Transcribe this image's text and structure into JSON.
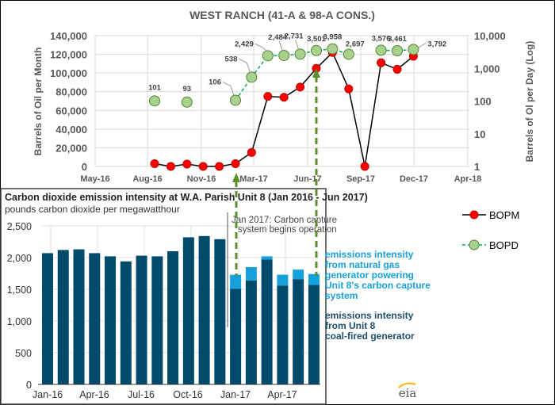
{
  "chart_data": [
    {
      "type": "line",
      "title": "WEST RANCH (41-A & 98-A CONS.)",
      "ylabel": "Barrels of Oil per Month",
      "y2label": "Barrels of Ol per Day (Log)",
      "x_ticks": [
        "May-16",
        "Aug-16",
        "Nov-16",
        "Mar-17",
        "Jun-17",
        "Sep-17",
        "Dec-17",
        "Apr-18"
      ],
      "y_ticks": [
        "0",
        "20,000",
        "40,000",
        "60,000",
        "80,000",
        "100,000",
        "120,000",
        "140,000"
      ],
      "y2_ticks": [
        "1",
        "10",
        "100",
        "1,000",
        "10,000"
      ],
      "ylim": [
        0,
        140000
      ],
      "y2lim": [
        1,
        10000
      ],
      "x": [
        "Aug-16",
        "Sep-16",
        "Oct-16",
        "Nov-16",
        "Dec-16",
        "Jan-17",
        "Feb-17",
        "Mar-17",
        "Apr-17",
        "May-17",
        "Jun-17",
        "Jul-17",
        "Aug-17",
        "Sep-17",
        "Oct-17",
        "Nov-17",
        "Dec-17"
      ],
      "series": [
        {
          "name": "BOPM",
          "axis": "left",
          "color": "#ff0000",
          "values": [
            3000,
            0,
            2500,
            0,
            0,
            3000,
            15000,
            75000,
            74000,
            85000,
            105000,
            122000,
            83000,
            0,
            111000,
            104000,
            118000
          ]
        },
        {
          "name": "BOPD",
          "axis": "right",
          "color": "#a9d18e",
          "values": [
            101,
            null,
            93,
            null,
            null,
            106,
            538,
            2429,
            2484,
            2731,
            3501,
            3958,
            2697,
            null,
            3576,
            3461,
            3792
          ],
          "labels": [
            "101",
            "",
            "93",
            "",
            "",
            "106",
            "538",
            "2,429",
            "2,484",
            "2,731",
            "3,501",
            "3,958",
            "2,697",
            "",
            "3,576",
            "3,461",
            "3,792"
          ]
        }
      ],
      "legend": [
        {
          "name": "BOPM"
        },
        {
          "name": "BOPD"
        }
      ],
      "legend_position": "right"
    },
    {
      "type": "bar",
      "title": "Carbon dioxide emission intensity at W.A. Parish Unit 8 (Jan 2016 - Jun 2017)",
      "subtitle": "pounds carbon dioxide per megawatthour",
      "x_ticks": [
        "Jan-16",
        "Apr-16",
        "Jul-16",
        "Oct-16",
        "Jan-17",
        "Apr-17"
      ],
      "y_ticks": [
        "0",
        "500",
        "1,000",
        "1,500",
        "2,000",
        "2,500"
      ],
      "ylim": [
        0,
        2500
      ],
      "categories": [
        "Jan-16",
        "Feb-16",
        "Mar-16",
        "Apr-16",
        "May-16",
        "Jun-16",
        "Jul-16",
        "Aug-16",
        "Sep-16",
        "Oct-16",
        "Nov-16",
        "Dec-16",
        "Jan-17",
        "Feb-17",
        "Mar-17",
        "Apr-17",
        "May-17",
        "Jun-17"
      ],
      "series": [
        {
          "name": "emissions intensity from Unit 8 coal-fired generator",
          "color": "#004a6b",
          "values": [
            2070,
            2120,
            2130,
            2070,
            2020,
            1940,
            2030,
            2020,
            2100,
            2320,
            2340,
            2290,
            1510,
            1640,
            1970,
            1560,
            1660,
            1570
          ]
        },
        {
          "name": "emissions intensity from natural gas generator powering Unit 8's carbon capture system",
          "color": "#16a0dc",
          "values": [
            0,
            0,
            0,
            0,
            0,
            0,
            0,
            0,
            0,
            0,
            0,
            0,
            220,
            210,
            50,
            170,
            150,
            170
          ]
        }
      ],
      "legend_lines_gas": [
        "emissions intensity",
        "from natural gas",
        "generator powering",
        "Unit 8's carbon capture",
        "system"
      ],
      "legend_lines_coal": [
        "emissions intensity",
        "from Unit 8",
        "coal-fired generator"
      ],
      "annotation": [
        "Jan 2017: Carbon capture",
        "system begins operation"
      ],
      "logo": "eia"
    }
  ]
}
